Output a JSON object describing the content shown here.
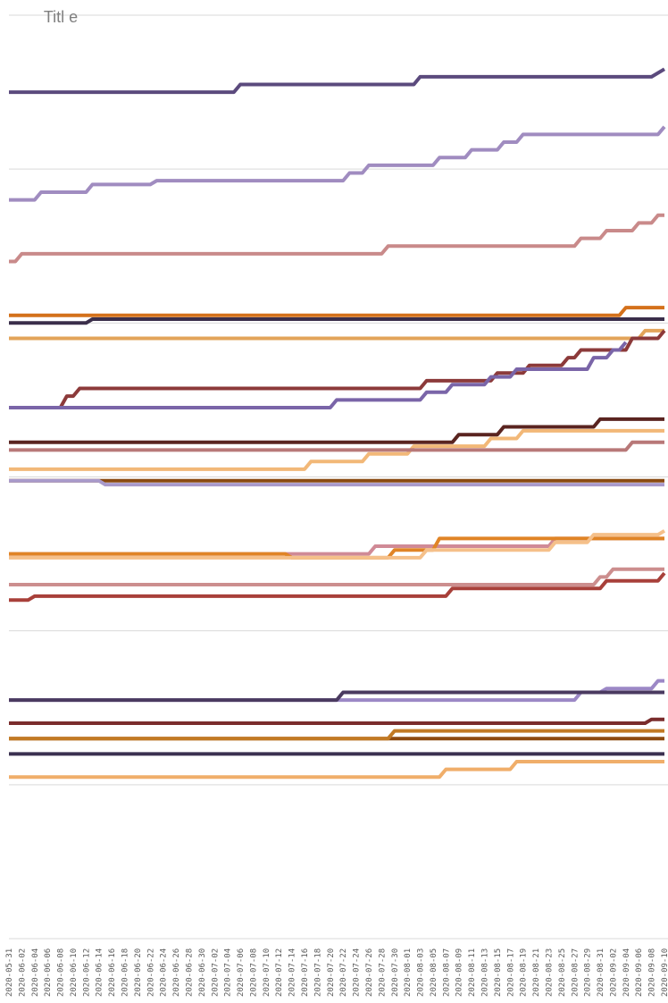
{
  "chart_data": {
    "type": "line",
    "ylabel": "Titl\ne",
    "ylim": [
      0,
      12
    ],
    "grid": true,
    "x": [
      "2020-05-31",
      "2020-06-02",
      "2020-06-04",
      "2020-06-06",
      "2020-06-08",
      "2020-06-10",
      "2020-06-12",
      "2020-06-14",
      "2020-06-16",
      "2020-06-18",
      "2020-06-20",
      "2020-06-22",
      "2020-06-24",
      "2020-06-26",
      "2020-06-28",
      "2020-06-30",
      "2020-07-02",
      "2020-07-04",
      "2020-07-06",
      "2020-07-08",
      "2020-07-10",
      "2020-07-12",
      "2020-07-14",
      "2020-07-16",
      "2020-07-18",
      "2020-07-20",
      "2020-07-22",
      "2020-07-24",
      "2020-07-26",
      "2020-07-28",
      "2020-07-30",
      "2020-08-01",
      "2020-08-03",
      "2020-08-05",
      "2020-08-07",
      "2020-08-09",
      "2020-08-11",
      "2020-08-13",
      "2020-08-15",
      "2020-08-17",
      "2020-08-19",
      "2020-08-21",
      "2020-08-23",
      "2020-08-25",
      "2020-08-27",
      "2020-08-29",
      "2020-08-31",
      "2020-09-02",
      "2020-09-04",
      "2020-09-06",
      "2020-09-08",
      "2020-09-10"
    ],
    "series": [
      {
        "color": "#5b4a7d",
        "points": [
          [
            "2020-05-31",
            11.0
          ],
          [
            "2020-07-05",
            11.0
          ],
          [
            "2020-07-06",
            11.1
          ],
          [
            "2020-08-02",
            11.1
          ],
          [
            "2020-08-03",
            11.2
          ],
          [
            "2020-09-08",
            11.2
          ],
          [
            "2020-09-10",
            11.3
          ]
        ]
      },
      {
        "color": "#a08cc0",
        "points": [
          [
            "2020-05-31",
            9.6
          ],
          [
            "2020-06-04",
            9.6
          ],
          [
            "2020-06-05",
            9.7
          ],
          [
            "2020-06-12",
            9.7
          ],
          [
            "2020-06-13",
            9.8
          ],
          [
            "2020-06-22",
            9.8
          ],
          [
            "2020-06-23",
            9.85
          ],
          [
            "2020-07-22",
            9.85
          ],
          [
            "2020-07-23",
            9.95
          ],
          [
            "2020-07-25",
            9.95
          ],
          [
            "2020-07-26",
            10.05
          ],
          [
            "2020-08-05",
            10.05
          ],
          [
            "2020-08-06",
            10.15
          ],
          [
            "2020-08-10",
            10.15
          ],
          [
            "2020-08-11",
            10.25
          ],
          [
            "2020-08-15",
            10.25
          ],
          [
            "2020-08-16",
            10.35
          ],
          [
            "2020-08-18",
            10.35
          ],
          [
            "2020-08-19",
            10.45
          ],
          [
            "2020-09-09",
            10.45
          ],
          [
            "2020-09-10",
            10.55
          ]
        ]
      },
      {
        "color": "#c98a8a",
        "points": [
          [
            "2020-05-31",
            8.8
          ],
          [
            "2020-06-01",
            8.8
          ],
          [
            "2020-06-02",
            8.9
          ],
          [
            "2020-07-28",
            8.9
          ],
          [
            "2020-07-29",
            9.0
          ],
          [
            "2020-08-27",
            9.0
          ],
          [
            "2020-08-28",
            9.1
          ],
          [
            "2020-08-31",
            9.1
          ],
          [
            "2020-09-01",
            9.2
          ],
          [
            "2020-09-05",
            9.2
          ],
          [
            "2020-09-06",
            9.3
          ],
          [
            "2020-09-08",
            9.3
          ],
          [
            "2020-09-09",
            9.4
          ],
          [
            "2020-09-10",
            9.4
          ]
        ]
      },
      {
        "color": "#d4711b",
        "points": [
          [
            "2020-05-31",
            8.1
          ],
          [
            "2020-09-03",
            8.1
          ],
          [
            "2020-09-04",
            8.2
          ],
          [
            "2020-09-10",
            8.2
          ]
        ]
      },
      {
        "color": "#3a2e4a",
        "points": [
          [
            "2020-05-31",
            8.0
          ],
          [
            "2020-06-12",
            8.0
          ],
          [
            "2020-06-13",
            8.05
          ],
          [
            "2020-09-10",
            8.05
          ]
        ]
      },
      {
        "color": "#e3a45a",
        "points": [
          [
            "2020-05-31",
            7.8
          ],
          [
            "2020-09-06",
            7.8
          ],
          [
            "2020-09-07",
            7.9
          ],
          [
            "2020-09-10",
            7.9
          ]
        ]
      },
      {
        "color": "#8c3a3a",
        "points": [
          [
            "2020-05-31",
            6.9
          ],
          [
            "2020-06-08",
            6.9
          ],
          [
            "2020-06-09",
            7.05
          ],
          [
            "2020-06-10",
            7.05
          ],
          [
            "2020-06-11",
            7.15
          ],
          [
            "2020-08-03",
            7.15
          ],
          [
            "2020-08-04",
            7.25
          ],
          [
            "2020-08-14",
            7.25
          ],
          [
            "2020-08-15",
            7.35
          ],
          [
            "2020-08-19",
            7.35
          ],
          [
            "2020-08-20",
            7.45
          ],
          [
            "2020-08-25",
            7.45
          ],
          [
            "2020-08-26",
            7.55
          ],
          [
            "2020-08-27",
            7.55
          ],
          [
            "2020-08-28",
            7.65
          ],
          [
            "2020-09-04",
            7.65
          ],
          [
            "2020-09-05",
            7.8
          ],
          [
            "2020-09-09",
            7.8
          ],
          [
            "2020-09-10",
            7.9
          ]
        ]
      },
      {
        "color": "#7a65a8",
        "points": [
          [
            "2020-05-31",
            6.9
          ],
          [
            "2020-07-20",
            6.9
          ],
          [
            "2020-07-21",
            7.0
          ],
          [
            "2020-08-03",
            7.0
          ],
          [
            "2020-08-04",
            7.1
          ],
          [
            "2020-08-07",
            7.1
          ],
          [
            "2020-08-08",
            7.2
          ],
          [
            "2020-08-13",
            7.2
          ],
          [
            "2020-08-14",
            7.3
          ],
          [
            "2020-08-17",
            7.3
          ],
          [
            "2020-08-18",
            7.4
          ],
          [
            "2020-08-29",
            7.4
          ],
          [
            "2020-08-30",
            7.55
          ],
          [
            "2020-09-01",
            7.55
          ],
          [
            "2020-09-02",
            7.65
          ],
          [
            "2020-09-03",
            7.65
          ],
          [
            "2020-09-04",
            7.75
          ]
        ]
      },
      {
        "color": "#f2b878",
        "points": [
          [
            "2020-05-31",
            6.1
          ],
          [
            "2020-07-16",
            6.1
          ],
          [
            "2020-07-17",
            6.2
          ],
          [
            "2020-07-25",
            6.2
          ],
          [
            "2020-07-26",
            6.3
          ],
          [
            "2020-08-01",
            6.3
          ],
          [
            "2020-08-02",
            6.4
          ],
          [
            "2020-08-13",
            6.4
          ],
          [
            "2020-08-14",
            6.5
          ],
          [
            "2020-08-18",
            6.5
          ],
          [
            "2020-08-19",
            6.6
          ],
          [
            "2020-09-10",
            6.6
          ]
        ]
      },
      {
        "color": "#5a2420",
        "points": [
          [
            "2020-05-31",
            6.45
          ],
          [
            "2020-08-08",
            6.45
          ],
          [
            "2020-08-09",
            6.55
          ],
          [
            "2020-08-15",
            6.55
          ],
          [
            "2020-08-16",
            6.65
          ],
          [
            "2020-08-30",
            6.65
          ],
          [
            "2020-08-31",
            6.75
          ],
          [
            "2020-09-10",
            6.75
          ]
        ]
      },
      {
        "color": "#b87878",
        "points": [
          [
            "2020-05-31",
            6.35
          ],
          [
            "2020-09-04",
            6.35
          ],
          [
            "2020-09-05",
            6.45
          ],
          [
            "2020-09-10",
            6.45
          ]
        ]
      },
      {
        "color": "#8a4a12",
        "points": [
          [
            "2020-05-31",
            5.95
          ],
          [
            "2020-09-10",
            5.95
          ]
        ]
      },
      {
        "color": "#a99acb",
        "points": [
          [
            "2020-05-31",
            5.95
          ],
          [
            "2020-06-14",
            5.95
          ],
          [
            "2020-06-15",
            5.9
          ],
          [
            "2020-09-10",
            5.9
          ]
        ]
      },
      {
        "color": "#d08a96",
        "points": [
          [
            "2020-05-31",
            5.0
          ],
          [
            "2020-07-26",
            5.0
          ],
          [
            "2020-07-27",
            5.1
          ],
          [
            "2020-08-23",
            5.1
          ],
          [
            "2020-08-24",
            5.2
          ],
          [
            "2020-09-10",
            5.2
          ]
        ]
      },
      {
        "color": "#e08426",
        "points": [
          [
            "2020-05-31",
            5.0
          ],
          [
            "2020-07-13",
            5.0
          ],
          [
            "2020-07-14",
            4.95
          ],
          [
            "2020-07-29",
            4.95
          ],
          [
            "2020-07-30",
            5.05
          ],
          [
            "2020-08-05",
            5.05
          ],
          [
            "2020-08-06",
            5.2
          ],
          [
            "2020-08-18",
            5.2
          ],
          [
            "2020-08-19",
            5.2
          ],
          [
            "2020-09-10",
            5.2
          ]
        ]
      },
      {
        "color": "#f5c08a",
        "points": [
          [
            "2020-05-31",
            4.95
          ],
          [
            "2020-08-03",
            4.95
          ],
          [
            "2020-08-04",
            5.05
          ],
          [
            "2020-08-23",
            5.05
          ],
          [
            "2020-08-24",
            5.15
          ],
          [
            "2020-08-29",
            5.15
          ],
          [
            "2020-08-30",
            5.25
          ],
          [
            "2020-09-09",
            5.25
          ],
          [
            "2020-09-10",
            5.3
          ]
        ]
      },
      {
        "color": "#cc8e8e",
        "points": [
          [
            "2020-05-31",
            4.6
          ],
          [
            "2020-08-30",
            4.6
          ],
          [
            "2020-08-31",
            4.7
          ],
          [
            "2020-09-01",
            4.7
          ],
          [
            "2020-09-02",
            4.8
          ],
          [
            "2020-09-10",
            4.8
          ]
        ]
      },
      {
        "color": "#a8403a",
        "points": [
          [
            "2020-05-31",
            4.4
          ],
          [
            "2020-06-03",
            4.4
          ],
          [
            "2020-06-04",
            4.45
          ],
          [
            "2020-08-07",
            4.45
          ],
          [
            "2020-08-08",
            4.55
          ],
          [
            "2020-08-31",
            4.55
          ],
          [
            "2020-09-01",
            4.65
          ],
          [
            "2020-09-09",
            4.65
          ],
          [
            "2020-09-10",
            4.75
          ]
        ]
      },
      {
        "color": "#9c88c6",
        "points": [
          [
            "2020-05-31",
            3.1
          ],
          [
            "2020-07-22",
            3.1
          ],
          [
            "2020-08-27",
            3.1
          ],
          [
            "2020-08-28",
            3.2
          ],
          [
            "2020-08-31",
            3.2
          ],
          [
            "2020-09-01",
            3.25
          ],
          [
            "2020-09-08",
            3.25
          ],
          [
            "2020-09-09",
            3.35
          ],
          [
            "2020-09-10",
            3.35
          ]
        ]
      },
      {
        "color": "#4a3a60",
        "points": [
          [
            "2020-05-31",
            3.1
          ],
          [
            "2020-07-21",
            3.1
          ],
          [
            "2020-07-22",
            3.2
          ],
          [
            "2020-09-10",
            3.2
          ]
        ]
      },
      {
        "color": "#7a2c2c",
        "points": [
          [
            "2020-05-31",
            2.8
          ],
          [
            "2020-09-07",
            2.8
          ],
          [
            "2020-09-08",
            2.85
          ],
          [
            "2020-09-10",
            2.85
          ]
        ]
      },
      {
        "color": "#8e4a10",
        "points": [
          [
            "2020-05-31",
            2.6
          ],
          [
            "2020-09-10",
            2.6
          ]
        ]
      },
      {
        "color": "#c27a24",
        "points": [
          [
            "2020-05-31",
            2.6
          ],
          [
            "2020-07-29",
            2.6
          ],
          [
            "2020-07-30",
            2.7
          ],
          [
            "2020-09-10",
            2.7
          ]
        ]
      },
      {
        "color": "#3b3150",
        "points": [
          [
            "2020-05-31",
            2.4
          ],
          [
            "2020-09-10",
            2.4
          ]
        ]
      },
      {
        "color": "#f0ae6a",
        "points": [
          [
            "2020-05-31",
            2.1
          ],
          [
            "2020-08-06",
            2.1
          ],
          [
            "2020-08-07",
            2.2
          ],
          [
            "2020-08-17",
            2.2
          ],
          [
            "2020-08-18",
            2.3
          ],
          [
            "2020-09-10",
            2.3
          ]
        ]
      }
    ]
  }
}
